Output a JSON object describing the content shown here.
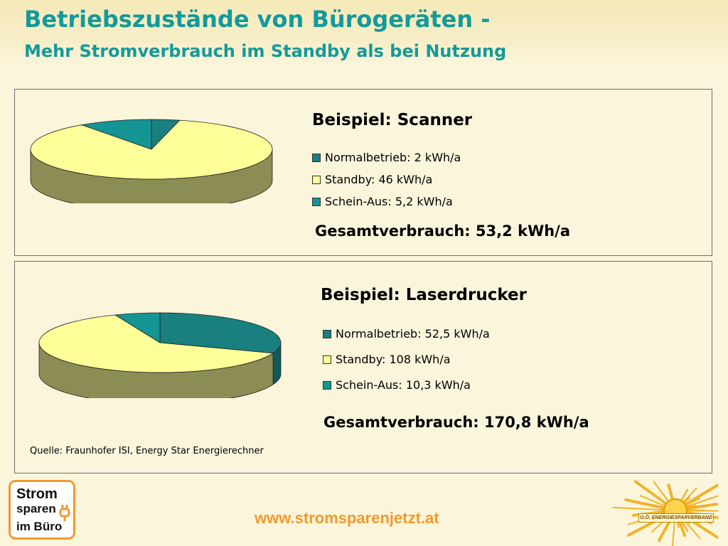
{
  "header": {
    "title": "Betriebszustände von Bürogeräten -",
    "subtitle": "Mehr Stromverbrauch im Standby als bei Nutzung"
  },
  "colors": {
    "normal": "#1a7f7f",
    "standby": "#ffff99",
    "schein_aus": "#159494",
    "side": "#8c8c55",
    "title": "#139a9a",
    "url": "#f39a2a"
  },
  "chart_data": [
    {
      "type": "pie",
      "title": "Beispiel: Scanner",
      "series": [
        {
          "label": "Normalbetrieb: 2 kWh/a",
          "value": 2
        },
        {
          "label": "Standby: 46 kWh/a",
          "value": 46
        },
        {
          "label": "Schein-Aus: 5,2 kWh/a",
          "value": 5.2
        }
      ],
      "total": "Gesamtverbrauch: 53,2 kWh/a"
    },
    {
      "type": "pie",
      "title": "Beispiel: Laserdrucker",
      "series": [
        {
          "label": "Normalbetrieb: 52,5 kWh/a",
          "value": 52.5
        },
        {
          "label": "Standby: 108 kWh/a",
          "value": 108
        },
        {
          "label": "Schein-Aus: 10,3 kWh/a",
          "value": 10.3
        }
      ],
      "total": "Gesamtverbrauch: 170,8 kWh/a"
    }
  ],
  "source": "Quelle: Fraunhofer ISI, Energy Star Energierechner",
  "footer": {
    "url": "www.stromsparenjetzt.at",
    "logo_lines": [
      "Strom",
      "sparen",
      "im Büro"
    ],
    "banner": "O.Ö. ENERGIESPARVERBAND"
  }
}
